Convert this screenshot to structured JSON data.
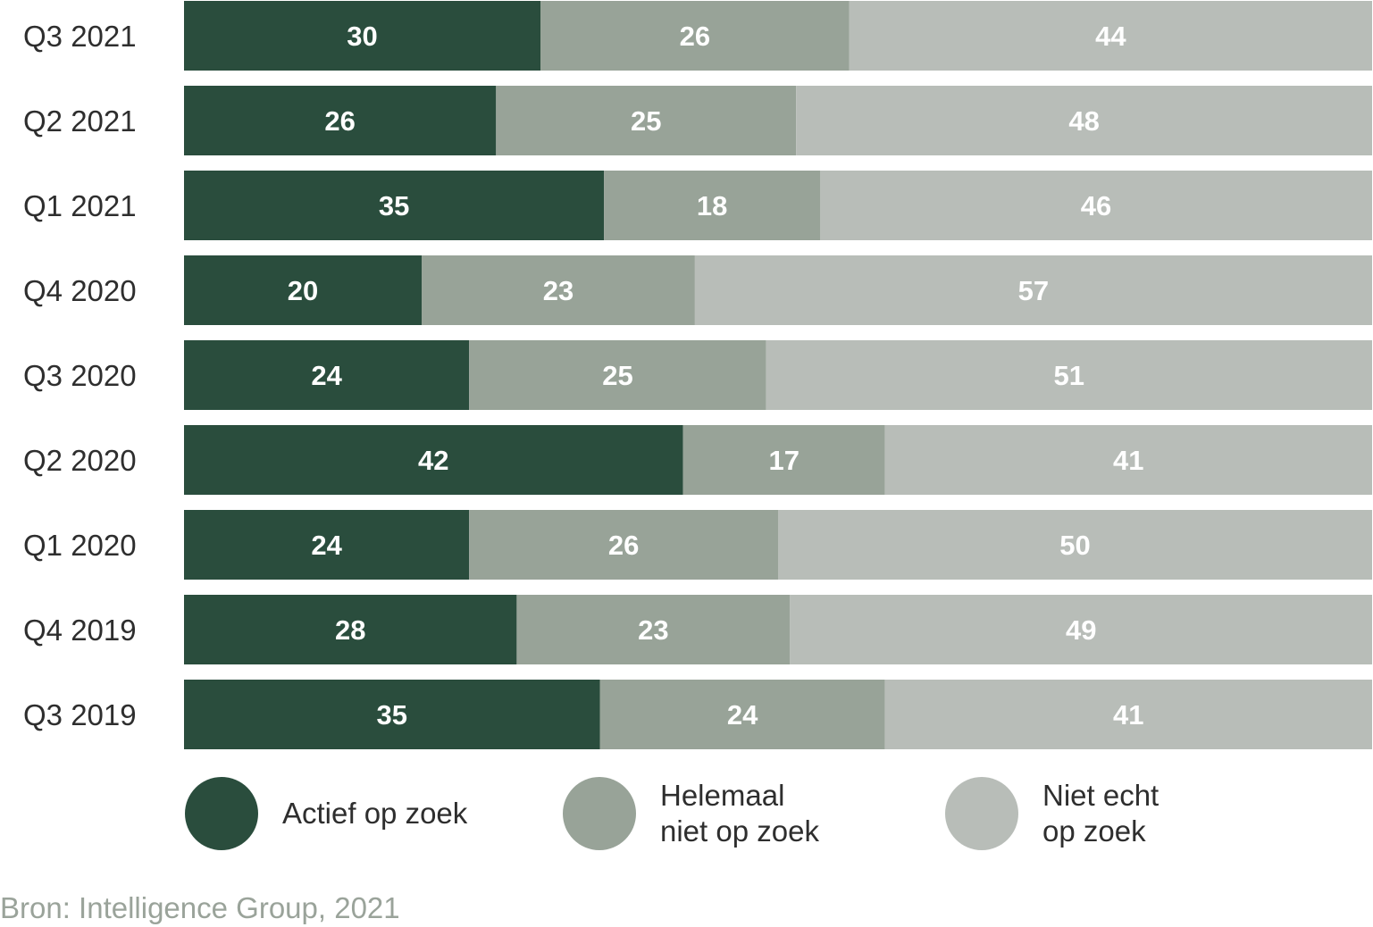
{
  "chart_data": {
    "type": "bar",
    "orientation": "horizontal",
    "stacked": true,
    "categories": [
      "Q3 2021",
      "Q2 2021",
      "Q1 2021",
      "Q4 2020",
      "Q3 2020",
      "Q2 2020",
      "Q1 2020",
      "Q4 2019",
      "Q3 2019"
    ],
    "series": [
      {
        "name": "Actief op zoek",
        "color": "#2a4d3d",
        "values": [
          30,
          26,
          35,
          20,
          24,
          42,
          24,
          28,
          35
        ]
      },
      {
        "name": "Helemaal niet op zoek",
        "color": "#98a398",
        "values": [
          26,
          25,
          18,
          23,
          25,
          17,
          26,
          23,
          24
        ]
      },
      {
        "name": "Niet echt op zoek",
        "color": "#b8bdb8",
        "values": [
          44,
          48,
          46,
          57,
          51,
          41,
          50,
          49,
          41
        ]
      }
    ],
    "legend": [
      {
        "lines": [
          "Actief op zoek"
        ],
        "color": "#2a4d3d"
      },
      {
        "lines": [
          "Helemaal",
          "niet op zoek"
        ],
        "color": "#98a398"
      },
      {
        "lines": [
          "Niet echt",
          "op zoek"
        ],
        "color": "#b8bdb8"
      }
    ],
    "legend_position": "bottom",
    "grid": false
  },
  "source": "Bron: Intelligence Group, 2021"
}
